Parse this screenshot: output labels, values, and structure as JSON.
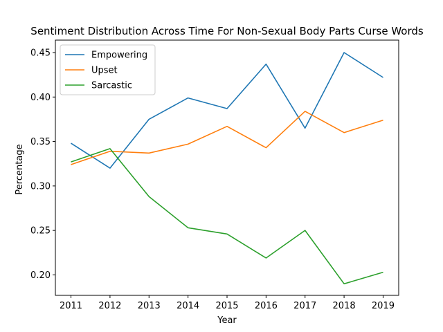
{
  "chart_data": {
    "type": "line",
    "title": "Sentiment Distribution Across Time For Non-Sexual Body Parts Curse Words",
    "xlabel": "Year",
    "ylabel": "Percentage",
    "categories": [
      "2011",
      "2012",
      "2013",
      "2014",
      "2015",
      "2016",
      "2017",
      "2018",
      "2019"
    ],
    "ylim": [
      0.177,
      0.464
    ],
    "yticks": [
      "0.20",
      "0.25",
      "0.30",
      "0.35",
      "0.40",
      "0.45"
    ],
    "legend_position": "upper-left",
    "grid": false,
    "series": [
      {
        "name": "Empowering",
        "color": "#1f77b4",
        "values": [
          0.348,
          0.32,
          0.375,
          0.399,
          0.387,
          0.437,
          0.365,
          0.45,
          0.422
        ]
      },
      {
        "name": "Upset",
        "color": "#ff7f0e",
        "values": [
          0.324,
          0.339,
          0.337,
          0.347,
          0.367,
          0.343,
          0.384,
          0.36,
          0.374
        ]
      },
      {
        "name": "Sarcastic",
        "color": "#2ca02c",
        "values": [
          0.327,
          0.342,
          0.288,
          0.253,
          0.246,
          0.219,
          0.25,
          0.19,
          0.203
        ]
      }
    ]
  }
}
